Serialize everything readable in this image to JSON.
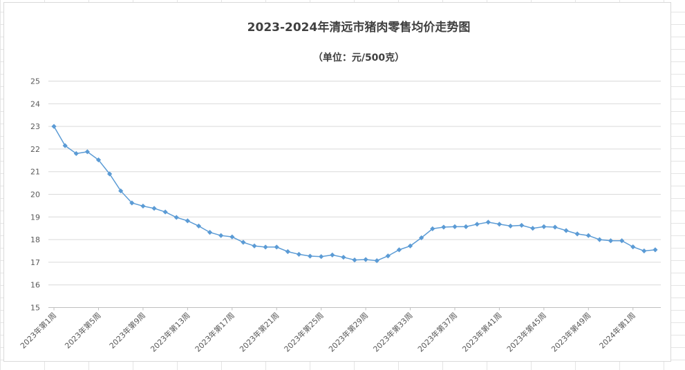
{
  "chart_data": {
    "type": "line",
    "title": "2023-2024年清远市猪肉零售均价走势图",
    "subtitle": "（单位：元/500克）",
    "xlabel": "",
    "ylabel": "",
    "ylim": [
      15,
      25
    ],
    "y_ticks": [
      "15",
      "16",
      "17",
      "18",
      "19",
      "20",
      "21",
      "22",
      "23",
      "24",
      "25"
    ],
    "grid": true,
    "legend": "none",
    "x_tick_labels": [
      "2023年第1周",
      "2023年第5周",
      "2023年第9周",
      "2023年第13周",
      "2023年第17周",
      "2023年第21周",
      "2023年第25周",
      "2023年第29周",
      "2023年第33周",
      "2023年第37周",
      "2023年第41周",
      "2023年第45周",
      "2023年第49周",
      "2024年第1周"
    ],
    "x_tick_every": 4,
    "series": [
      {
        "color": "#5b9bd5",
        "values": [
          23.0,
          22.15,
          21.8,
          21.88,
          21.52,
          20.9,
          20.15,
          19.62,
          19.48,
          19.38,
          19.22,
          18.98,
          18.83,
          18.6,
          18.32,
          18.18,
          18.12,
          17.88,
          17.72,
          17.67,
          17.67,
          17.47,
          17.35,
          17.27,
          17.25,
          17.32,
          17.22,
          17.1,
          17.12,
          17.07,
          17.28,
          17.55,
          17.72,
          18.08,
          18.48,
          18.55,
          18.57,
          18.57,
          18.68,
          18.77,
          18.68,
          18.6,
          18.63,
          18.5,
          18.57,
          18.55,
          18.4,
          18.25,
          18.18,
          18.0,
          17.95,
          17.95,
          17.68,
          17.5,
          17.55
        ]
      }
    ]
  },
  "colors": {
    "series": "#5b9bd5",
    "gridline": "#d9d9d9",
    "text": "#595959",
    "title": "#404040",
    "sheet_grid": "#e4e4e4"
  }
}
